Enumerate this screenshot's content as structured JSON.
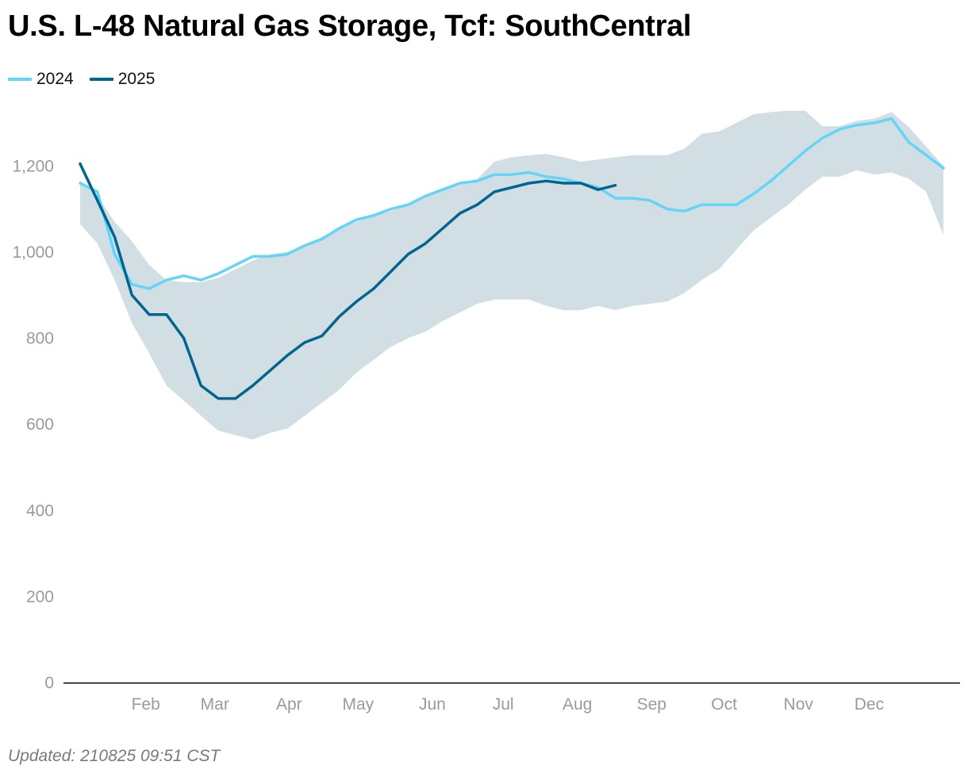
{
  "title": "U.S. L-48 Natural Gas Storage, Tcf: SouthCentral",
  "footer": "Updated: 210825 09:51 CST",
  "colors": {
    "2024": "#66d4f7",
    "2025": "#03658e",
    "range": "#d1dfe4",
    "axis": "#000000",
    "tick": "#9a9a9a"
  },
  "chart_data": {
    "type": "line",
    "title": "U.S. L-48 Natural Gas Storage, Tcf: SouthCentral",
    "xlabel": "",
    "ylabel": "",
    "ylim": [
      0,
      1300
    ],
    "yticks": [
      0,
      200,
      400,
      600,
      800,
      1000,
      1200
    ],
    "ytick_labels": [
      "0",
      "200",
      "400",
      "600",
      "800",
      "1,000",
      "1,200"
    ],
    "months": [
      "Feb",
      "Mar",
      "Apr",
      "May",
      "Jun",
      "Jul",
      "Aug",
      "Sep",
      "Oct",
      "Nov",
      "Dec"
    ],
    "month_weeks": [
      3.8,
      7.8,
      12.1,
      16.1,
      20.4,
      24.5,
      28.8,
      33.1,
      37.3,
      41.6,
      45.7
    ],
    "x_max_week": 50,
    "grid": false,
    "legend": "top-left",
    "range_band": {
      "weeks": [
        0,
        1,
        2,
        3,
        4,
        5,
        6,
        7,
        8,
        9,
        10,
        11,
        12,
        13,
        14,
        15,
        16,
        17,
        18,
        19,
        20,
        21,
        22,
        23,
        24,
        25,
        26,
        27,
        28,
        29,
        30,
        31,
        32,
        33,
        34,
        35,
        36,
        37,
        38,
        39,
        40,
        41,
        42,
        43,
        44,
        45,
        46,
        47,
        48,
        49,
        50
      ],
      "upper": [
        1165,
        1130,
        1070,
        1025,
        970,
        935,
        930,
        930,
        940,
        960,
        980,
        995,
        1000,
        1015,
        1035,
        1055,
        1070,
        1085,
        1095,
        1110,
        1130,
        1145,
        1160,
        1170,
        1210,
        1220,
        1225,
        1228,
        1220,
        1210,
        1215,
        1220,
        1225,
        1225,
        1225,
        1240,
        1275,
        1280,
        1300,
        1320,
        1325,
        1328,
        1328,
        1292,
        1292,
        1305,
        1310,
        1325,
        1290,
        1245,
        1200
      ],
      "lower": [
        1065,
        1020,
        935,
        835,
        765,
        690,
        655,
        620,
        585,
        575,
        565,
        580,
        590,
        620,
        650,
        680,
        720,
        750,
        780,
        800,
        815,
        840,
        860,
        880,
        890,
        890,
        890,
        875,
        865,
        865,
        875,
        865,
        875,
        880,
        885,
        905,
        935,
        960,
        1005,
        1050,
        1080,
        1110,
        1145,
        1175,
        1175,
        1190,
        1180,
        1185,
        1170,
        1140,
        1040
      ]
    },
    "series": [
      {
        "name": "2024",
        "weeks": [
          0,
          1,
          2,
          3,
          4,
          5,
          6,
          7,
          8,
          9,
          10,
          11,
          12,
          13,
          14,
          15,
          16,
          17,
          18,
          19,
          20,
          21,
          22,
          23,
          24,
          25,
          26,
          27,
          28,
          29,
          30,
          31,
          32,
          33,
          34,
          35,
          36,
          37,
          38,
          39,
          40,
          41,
          42,
          43,
          44,
          45,
          46,
          47,
          48,
          49,
          50
        ],
        "values": [
          1160,
          1140,
          995,
          925,
          915,
          935,
          945,
          935,
          950,
          970,
          990,
          990,
          995,
          1015,
          1030,
          1055,
          1075,
          1085,
          1100,
          1110,
          1130,
          1145,
          1160,
          1165,
          1180,
          1180,
          1185,
          1175,
          1170,
          1160,
          1150,
          1125,
          1125,
          1120,
          1100,
          1095,
          1110,
          1110,
          1110,
          1135,
          1165,
          1200,
          1235,
          1265,
          1285,
          1295,
          1300,
          1310,
          1255,
          1225,
          1195
        ]
      },
      {
        "name": "2025",
        "weeks": [
          0,
          1,
          2,
          3,
          4,
          5,
          6,
          7,
          8,
          9,
          10,
          11,
          12,
          13,
          14,
          15,
          16,
          17,
          18,
          19,
          20,
          21,
          22,
          23,
          24,
          25,
          26,
          27,
          28,
          29,
          30,
          31
        ],
        "values": [
          1205,
          1120,
          1035,
          900,
          855,
          855,
          800,
          690,
          660,
          660,
          690,
          725,
          760,
          790,
          805,
          850,
          885,
          915,
          955,
          995,
          1020,
          1055,
          1090,
          1110,
          1140,
          1150,
          1160,
          1165,
          1160,
          1160,
          1145,
          1155
        ]
      }
    ]
  }
}
